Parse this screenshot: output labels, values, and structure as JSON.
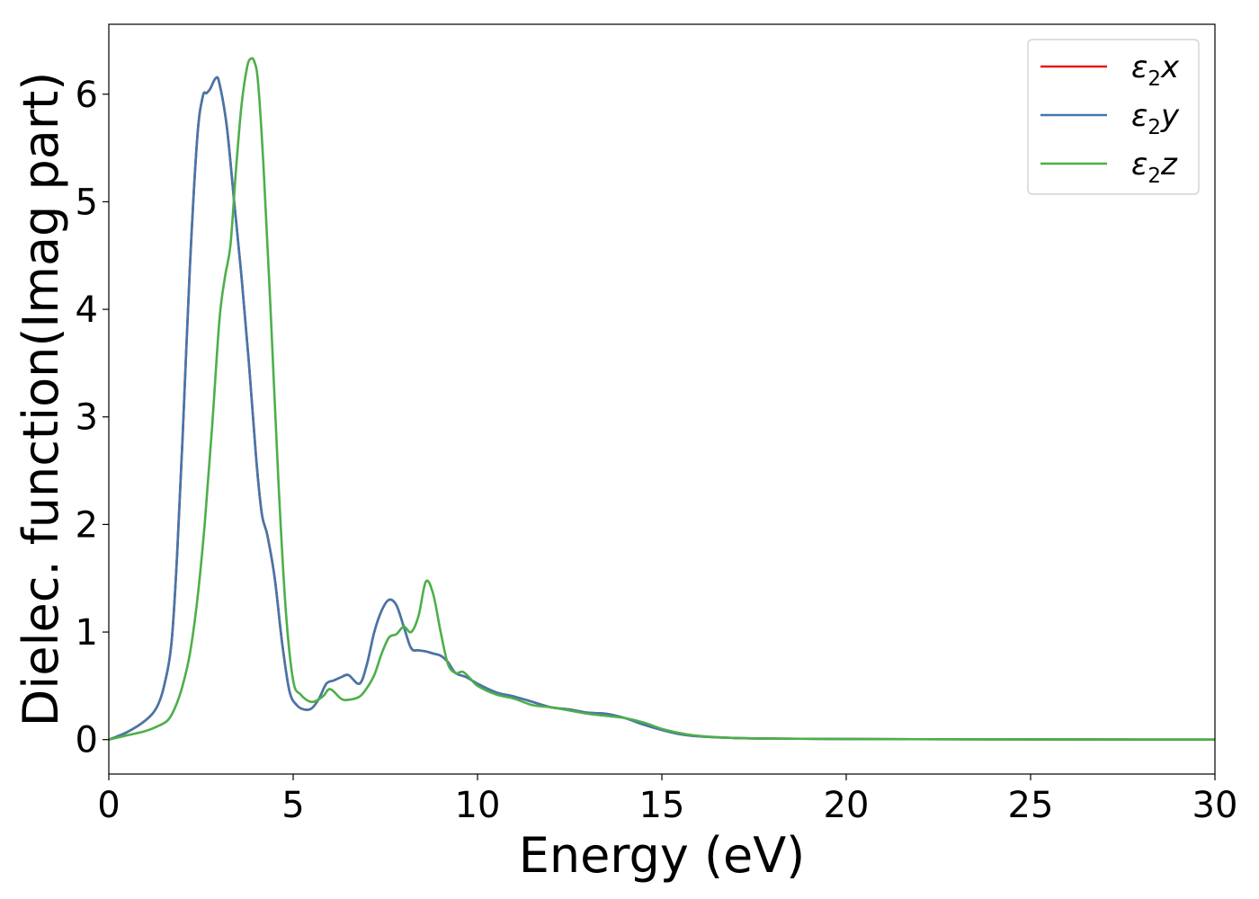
{
  "chart_data": {
    "type": "line",
    "title": "",
    "xlabel": "Energy (eV)",
    "ylabel": "Dielec. function(Imag part)",
    "xlim": [
      0,
      30
    ],
    "ylim": [
      -0.32,
      6.65
    ],
    "xticks": [
      0,
      5,
      10,
      15,
      20,
      25,
      30
    ],
    "yticks": [
      0,
      1,
      2,
      3,
      4,
      5,
      6
    ],
    "grid": false,
    "legend_position": "top-right",
    "series": [
      {
        "name": "ε2x",
        "legend_base": "ε",
        "legend_sub": "2",
        "legend_var": "x",
        "color": "#e41a1c",
        "x": [
          0,
          0.5,
          1,
          1.3,
          1.5,
          1.7,
          1.85,
          2.0,
          2.2,
          2.4,
          2.55,
          2.65,
          2.75,
          2.9,
          3.0,
          3.2,
          3.4,
          3.6,
          3.8,
          4.0,
          4.15,
          4.3,
          4.5,
          4.7,
          4.9,
          5.1,
          5.3,
          5.5,
          5.7,
          5.9,
          6.1,
          6.3,
          6.5,
          6.8,
          7.0,
          7.2,
          7.4,
          7.6,
          7.8,
          8.0,
          8.2,
          8.4,
          8.6,
          8.8,
          9.0,
          9.2,
          9.4,
          9.7,
          10.0,
          10.5,
          11.0,
          11.5,
          12.0,
          12.5,
          13.0,
          13.5,
          14.0,
          14.5,
          15.0,
          15.5,
          16.0,
          17.0,
          18.0,
          20.0,
          25.0,
          30.0
        ],
        "y": [
          0.0,
          0.07,
          0.18,
          0.3,
          0.5,
          0.9,
          1.7,
          2.8,
          4.4,
          5.6,
          5.98,
          6.01,
          6.05,
          6.15,
          6.1,
          5.7,
          5.0,
          4.3,
          3.5,
          2.6,
          2.1,
          1.9,
          1.5,
          0.9,
          0.45,
          0.32,
          0.28,
          0.29,
          0.38,
          0.52,
          0.55,
          0.58,
          0.6,
          0.52,
          0.7,
          1.0,
          1.2,
          1.3,
          1.25,
          1.05,
          0.85,
          0.83,
          0.82,
          0.8,
          0.78,
          0.72,
          0.62,
          0.58,
          0.52,
          0.44,
          0.4,
          0.35,
          0.3,
          0.28,
          0.25,
          0.24,
          0.2,
          0.14,
          0.09,
          0.05,
          0.03,
          0.015,
          0.01,
          0.005,
          0.002,
          0.0
        ]
      },
      {
        "name": "ε2y",
        "legend_base": "ε",
        "legend_sub": "2",
        "legend_var": "y",
        "color": "#4477aa",
        "x": [
          0,
          0.5,
          1,
          1.3,
          1.5,
          1.7,
          1.85,
          2.0,
          2.2,
          2.4,
          2.55,
          2.65,
          2.75,
          2.9,
          3.0,
          3.2,
          3.4,
          3.6,
          3.8,
          4.0,
          4.15,
          4.3,
          4.5,
          4.7,
          4.9,
          5.1,
          5.3,
          5.5,
          5.7,
          5.9,
          6.1,
          6.3,
          6.5,
          6.8,
          7.0,
          7.2,
          7.4,
          7.6,
          7.8,
          8.0,
          8.2,
          8.4,
          8.6,
          8.8,
          9.0,
          9.2,
          9.4,
          9.7,
          10.0,
          10.5,
          11.0,
          11.5,
          12.0,
          12.5,
          13.0,
          13.5,
          14.0,
          14.5,
          15.0,
          15.5,
          16.0,
          17.0,
          18.0,
          20.0,
          25.0,
          30.0
        ],
        "y": [
          0.0,
          0.07,
          0.18,
          0.3,
          0.5,
          0.9,
          1.7,
          2.8,
          4.4,
          5.6,
          5.98,
          6.01,
          6.05,
          6.15,
          6.1,
          5.7,
          5.0,
          4.3,
          3.5,
          2.6,
          2.1,
          1.9,
          1.5,
          0.9,
          0.45,
          0.32,
          0.28,
          0.29,
          0.38,
          0.52,
          0.55,
          0.58,
          0.6,
          0.52,
          0.7,
          1.0,
          1.2,
          1.3,
          1.25,
          1.05,
          0.85,
          0.83,
          0.82,
          0.8,
          0.78,
          0.72,
          0.62,
          0.58,
          0.52,
          0.44,
          0.4,
          0.35,
          0.3,
          0.28,
          0.25,
          0.24,
          0.2,
          0.14,
          0.09,
          0.05,
          0.03,
          0.015,
          0.01,
          0.005,
          0.002,
          0.0
        ]
      },
      {
        "name": "ε2z",
        "legend_base": "ε",
        "legend_sub": "2",
        "legend_var": "z",
        "color": "#4daf4a",
        "x": [
          0,
          0.5,
          1,
          1.3,
          1.6,
          1.8,
          2.0,
          2.2,
          2.4,
          2.6,
          2.8,
          3.0,
          3.15,
          3.3,
          3.45,
          3.6,
          3.75,
          3.85,
          3.95,
          4.05,
          4.2,
          4.4,
          4.6,
          4.8,
          5.0,
          5.2,
          5.5,
          5.8,
          6.0,
          6.3,
          6.5,
          6.8,
          7.0,
          7.2,
          7.4,
          7.6,
          7.8,
          8.0,
          8.2,
          8.4,
          8.6,
          8.8,
          9.0,
          9.2,
          9.4,
          9.6,
          9.8,
          10.0,
          10.5,
          11.0,
          11.5,
          12.0,
          12.5,
          13.0,
          13.5,
          14.0,
          14.5,
          15.0,
          15.5,
          16.0,
          17.0,
          18.0,
          20.0,
          25.0,
          30.0
        ],
        "y": [
          0.0,
          0.04,
          0.08,
          0.12,
          0.18,
          0.3,
          0.5,
          0.8,
          1.3,
          2.0,
          2.9,
          3.9,
          4.3,
          4.6,
          5.3,
          5.9,
          6.25,
          6.33,
          6.3,
          6.1,
          5.3,
          3.9,
          2.4,
          1.2,
          0.55,
          0.42,
          0.35,
          0.4,
          0.47,
          0.38,
          0.37,
          0.4,
          0.48,
          0.6,
          0.8,
          0.95,
          0.98,
          1.05,
          1.0,
          1.15,
          1.47,
          1.35,
          1.0,
          0.7,
          0.62,
          0.63,
          0.57,
          0.5,
          0.42,
          0.38,
          0.32,
          0.3,
          0.27,
          0.24,
          0.22,
          0.2,
          0.16,
          0.1,
          0.06,
          0.035,
          0.015,
          0.01,
          0.005,
          0.002,
          0.0
        ]
      }
    ]
  }
}
